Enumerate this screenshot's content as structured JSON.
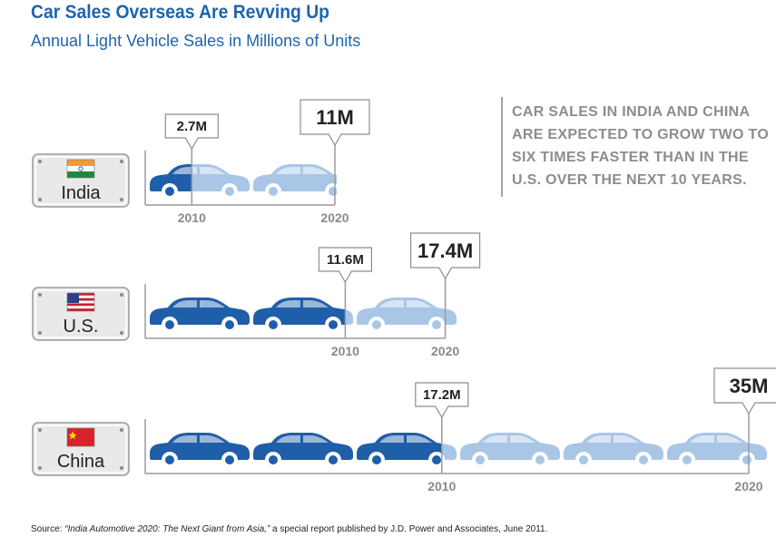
{
  "header": {
    "title": "Car Sales Overseas Are Revving Up",
    "subtitle": "Annual Light Vehicle Sales in Millions of Units"
  },
  "callout": "CAR SALES IN INDIA AND CHINA ARE EXPECTED TO GROW TWO TO SIX TIMES FASTER THAN IN THE U.S. OVER THE NEXT 10 YEARS.",
  "footnote": {
    "prefix": "Source: ",
    "source_title": "“India Automotive 2020: The Next Giant from Asia,”",
    "rest": " a special report published by J.D. Power and Associates, June 2011."
  },
  "colors": {
    "dark_car": "#1f5ea8",
    "light_car": "#a9c6e6",
    "title": "#1f64ad",
    "callout": "#8d8d8d"
  },
  "chart_data": {
    "type": "bar",
    "unit": "Millions of Units",
    "categories": [
      "India",
      "U.S.",
      "China"
    ],
    "series": [
      {
        "name": "2010",
        "values": [
          2.7,
          11.6,
          17.2
        ],
        "labels": [
          "2.7M",
          "11.6M",
          "17.2M"
        ]
      },
      {
        "name": "2020",
        "values": [
          11,
          17.4,
          35
        ],
        "labels": [
          "11M",
          "17.4M",
          "35M"
        ]
      }
    ],
    "flags": [
      "india-flag",
      "us-flag",
      "china-flag"
    ]
  }
}
